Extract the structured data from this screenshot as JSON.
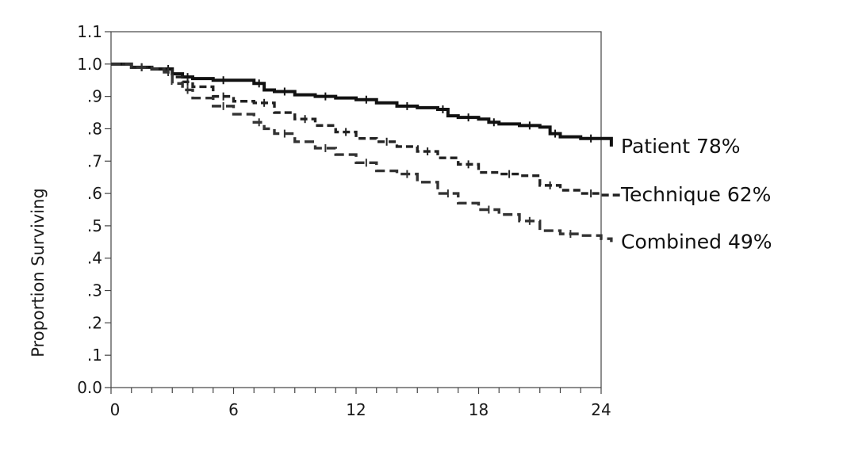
{
  "chart_data": {
    "type": "line",
    "title": "",
    "xlabel": "",
    "ylabel": "Proportion Surviving",
    "xlim": [
      0,
      24
    ],
    "ylim": [
      0,
      1.1
    ],
    "x_ticks": [
      0,
      6,
      12,
      18,
      24
    ],
    "x_tick_labels": [
      "0",
      "6",
      "12",
      "18",
      "24"
    ],
    "y_ticks": [
      0,
      0.1,
      0.2,
      0.3,
      0.4,
      0.5,
      0.6,
      0.7,
      0.8,
      0.9,
      1.0,
      1.1
    ],
    "y_tick_labels": [
      "0.0",
      ".1",
      ".2",
      ".3",
      ".4",
      ".5",
      ".6",
      ".7",
      ".8",
      ".9",
      "1.0",
      "1.1"
    ],
    "grid": false,
    "series": [
      {
        "name": "Patient 78%",
        "style": "solid",
        "color": "#111111",
        "x": [
          0,
          1,
          2,
          2.6,
          3,
          3.5,
          4,
          5,
          6,
          7,
          7.5,
          8,
          9,
          10,
          11,
          12,
          13,
          14,
          15,
          16,
          16.5,
          17,
          18,
          18.5,
          19,
          20,
          21,
          21.5,
          22,
          23,
          24,
          24.5
        ],
        "y": [
          1.0,
          0.99,
          0.985,
          0.985,
          0.97,
          0.96,
          0.955,
          0.95,
          0.95,
          0.94,
          0.92,
          0.915,
          0.905,
          0.9,
          0.895,
          0.89,
          0.88,
          0.87,
          0.865,
          0.86,
          0.84,
          0.835,
          0.83,
          0.82,
          0.815,
          0.81,
          0.805,
          0.785,
          0.775,
          0.77,
          0.77,
          0.745
        ]
      },
      {
        "name": "Technique 62%",
        "style": "dashed",
        "color": "#222222",
        "x": [
          0,
          1,
          2,
          2.6,
          3,
          3.5,
          4,
          5,
          6,
          7,
          8,
          9,
          10,
          11,
          12,
          13,
          14,
          15,
          16,
          17,
          18,
          19,
          20,
          21,
          22,
          23,
          24,
          25
        ],
        "y": [
          1.0,
          0.99,
          0.985,
          0.98,
          0.96,
          0.945,
          0.93,
          0.9,
          0.885,
          0.88,
          0.85,
          0.83,
          0.81,
          0.79,
          0.77,
          0.76,
          0.745,
          0.73,
          0.71,
          0.69,
          0.665,
          0.66,
          0.655,
          0.625,
          0.61,
          0.6,
          0.595,
          0.595
        ]
      },
      {
        "name": "Combined 49%",
        "style": "dashed",
        "color": "#333333",
        "x": [
          0,
          1,
          2,
          2.6,
          3,
          3.5,
          4,
          5,
          6,
          7,
          7.5,
          8,
          9,
          10,
          11,
          12,
          13,
          14,
          15,
          16,
          17,
          18,
          19,
          20,
          21,
          22,
          23,
          24,
          24.5
        ],
        "y": [
          1.0,
          0.99,
          0.985,
          0.975,
          0.94,
          0.92,
          0.895,
          0.87,
          0.845,
          0.82,
          0.8,
          0.785,
          0.76,
          0.74,
          0.72,
          0.695,
          0.67,
          0.66,
          0.635,
          0.6,
          0.57,
          0.55,
          0.535,
          0.515,
          0.485,
          0.475,
          0.47,
          0.46,
          0.45
        ]
      }
    ]
  }
}
